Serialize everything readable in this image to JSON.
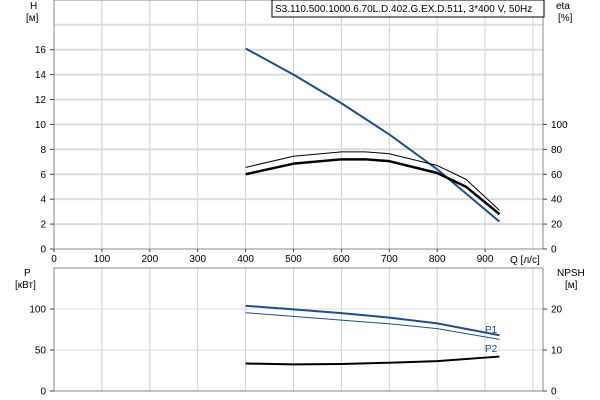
{
  "title": "S3.110.500.1000.6.70L.D.402.G.EX.D.511, 3*400 V, 50Hz",
  "chart_data": [
    {
      "type": "line",
      "x_label": "Q [л/с]",
      "y_label_left": "H",
      "y_unit_left": "[м]",
      "y_label_right": "eta",
      "y_unit_right": "[%]",
      "xlim": [
        0,
        1000
      ],
      "x_ticks": [
        0,
        100,
        200,
        300,
        400,
        500,
        600,
        700,
        800,
        900
      ],
      "ylim_left": [
        0,
        18
      ],
      "y_ticks_left": [
        0,
        2,
        4,
        6,
        8,
        10,
        12,
        14,
        16
      ],
      "ylim_right": [
        0,
        180
      ],
      "y_ticks_right": [
        0,
        20,
        40,
        60,
        80,
        100
      ],
      "grid": true,
      "series": [
        {
          "axis": "left",
          "color": "#1f4e89",
          "width": 2,
          "x": [
            400,
            500,
            600,
            700,
            800,
            930
          ],
          "y": [
            16.1,
            14.0,
            11.7,
            9.2,
            6.4,
            2.2
          ]
        },
        {
          "axis": "right",
          "color": "#000000",
          "width": 2.5,
          "x": [
            400,
            500,
            600,
            650,
            700,
            800,
            860,
            930
          ],
          "y": [
            60,
            68.5,
            72,
            72,
            70.5,
            61,
            50,
            28
          ]
        },
        {
          "axis": "right",
          "color": "#000000",
          "width": 1,
          "x": [
            400,
            500,
            600,
            650,
            700,
            800,
            860,
            930
          ],
          "y": [
            65.5,
            74.5,
            78,
            78,
            76.5,
            67,
            56,
            31
          ]
        }
      ]
    },
    {
      "type": "line",
      "y_label_left": "P",
      "y_unit_left": "[кВт]",
      "y_label_right": "NPSH",
      "y_unit_right": "[м]",
      "xlim": [
        0,
        1000
      ],
      "ylim_left": [
        0,
        150
      ],
      "y_ticks_left": [
        0,
        50,
        100
      ],
      "ylim_right": [
        0,
        30
      ],
      "y_ticks_right": [
        0,
        10,
        20
      ],
      "grid": true,
      "series": [
        {
          "name": "P1",
          "axis": "left",
          "color": "#1f4e89",
          "width": 2,
          "x": [
            400,
            500,
            600,
            700,
            800,
            930
          ],
          "y": [
            104,
            99.5,
            95,
            89.5,
            82.5,
            68
          ]
        },
        {
          "name": "P2",
          "axis": "left",
          "color": "#1f4e89",
          "width": 1,
          "x": [
            400,
            500,
            600,
            700,
            800,
            930
          ],
          "y": [
            95.5,
            91,
            86.5,
            82,
            76,
            63
          ]
        },
        {
          "axis": "right",
          "color": "#000000",
          "width": 2,
          "x": [
            400,
            500,
            600,
            700,
            800,
            930
          ],
          "y": [
            6.7,
            6.5,
            6.6,
            6.9,
            7.3,
            8.4
          ]
        }
      ]
    }
  ]
}
